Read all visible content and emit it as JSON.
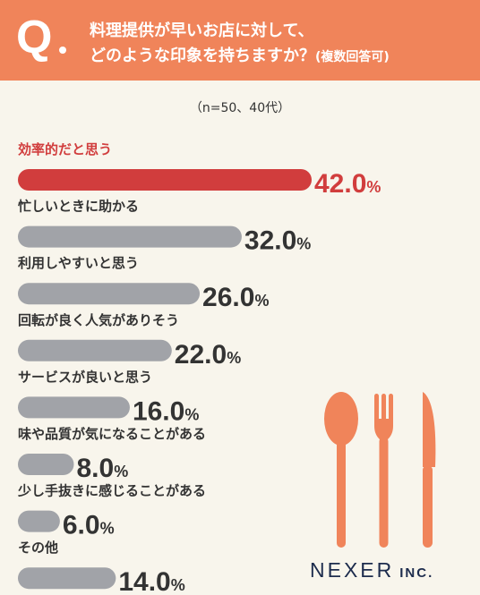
{
  "header": {
    "q_mark": "Q",
    "question_line1": "料理提供が早いお店に対して、",
    "question_line2": "どのような印象を持ちますか？",
    "question_note": "(複数回答可)"
  },
  "sample_note": "（n=50、40代）",
  "logo": {
    "name": "NEXER",
    "suffix": "INC."
  },
  "colors": {
    "header": "#f0845a",
    "highlight": "#d13d3d",
    "bar": "#a1a3a8",
    "text": "#333333",
    "cutlery": "#f0845a"
  },
  "icons": [
    "spoon-icon",
    "fork-icon",
    "knife-icon"
  ],
  "chart_data": {
    "type": "bar",
    "orientation": "horizontal",
    "unit": "%",
    "xlim": [
      0,
      42
    ],
    "categories": [
      "効率的だと思う",
      "忙しいときに助かる",
      "利用しやすいと思う",
      "回転が良く人気がありそう",
      "サービスが良いと思う",
      "味や品質が気になることがある",
      "少し手抜きに感じることがある",
      "その他"
    ],
    "values": [
      42.0,
      32.0,
      26.0,
      22.0,
      16.0,
      8.0,
      6.0,
      14.0
    ],
    "value_labels": [
      "42.0",
      "32.0",
      "26.0",
      "22.0",
      "16.0",
      "8.0",
      "6.0",
      "14.0"
    ],
    "highlight_index": 0
  }
}
